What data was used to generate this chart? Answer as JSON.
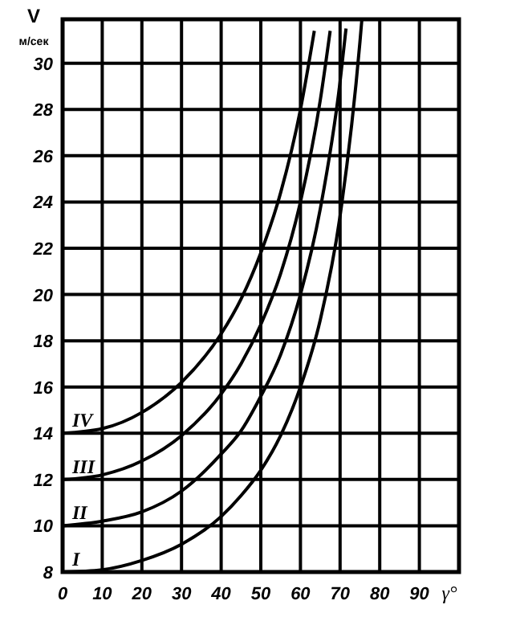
{
  "chart_data": {
    "type": "line",
    "xlabel": "γ°",
    "ylabel": "V$_{м/сек}$",
    "xlim": [
      0,
      100
    ],
    "xticks": [
      0,
      10,
      20,
      30,
      40,
      50,
      60,
      70,
      80,
      90
    ],
    "ylim": [
      8,
      31.9
    ],
    "yticks": [
      8,
      10,
      12,
      14,
      16,
      18,
      20,
      22,
      24,
      26,
      28,
      30
    ],
    "grid": true,
    "marker": "none",
    "line_style": "solid",
    "series": [
      {
        "name": "I",
        "color": "#000000",
        "x": [
          0,
          10,
          20,
          30,
          40,
          45,
          50,
          55,
          60,
          65,
          70,
          75,
          75.5
        ],
        "values": [
          8,
          8.1,
          8.5,
          9.2,
          10.4,
          11.3,
          12.4,
          13.9,
          16,
          18.9,
          23.4,
          30.9,
          31.9
        ]
      },
      {
        "name": "II",
        "color": "#000000",
        "x": [
          0,
          10,
          20,
          30,
          40,
          45,
          50,
          55,
          60,
          65,
          70,
          71.5
        ],
        "values": [
          10,
          10.2,
          10.6,
          11.5,
          13.1,
          14.1,
          15.6,
          17.4,
          20,
          23.7,
          29.2,
          31.5
        ]
      },
      {
        "name": "III",
        "color": "#000000",
        "x": [
          0,
          10,
          20,
          30,
          40,
          45,
          50,
          55,
          60,
          65,
          67.5
        ],
        "values": [
          12,
          12.2,
          12.8,
          13.9,
          15.7,
          17,
          18.7,
          20.9,
          24,
          28.4,
          31.4
        ]
      },
      {
        "name": "IV",
        "color": "#000000",
        "x": [
          0,
          10,
          20,
          30,
          40,
          45,
          50,
          55,
          60,
          63.5
        ],
        "values": [
          14,
          14.2,
          14.9,
          16.2,
          18.3,
          19.8,
          21.8,
          24.4,
          28,
          31.4
        ]
      }
    ]
  }
}
